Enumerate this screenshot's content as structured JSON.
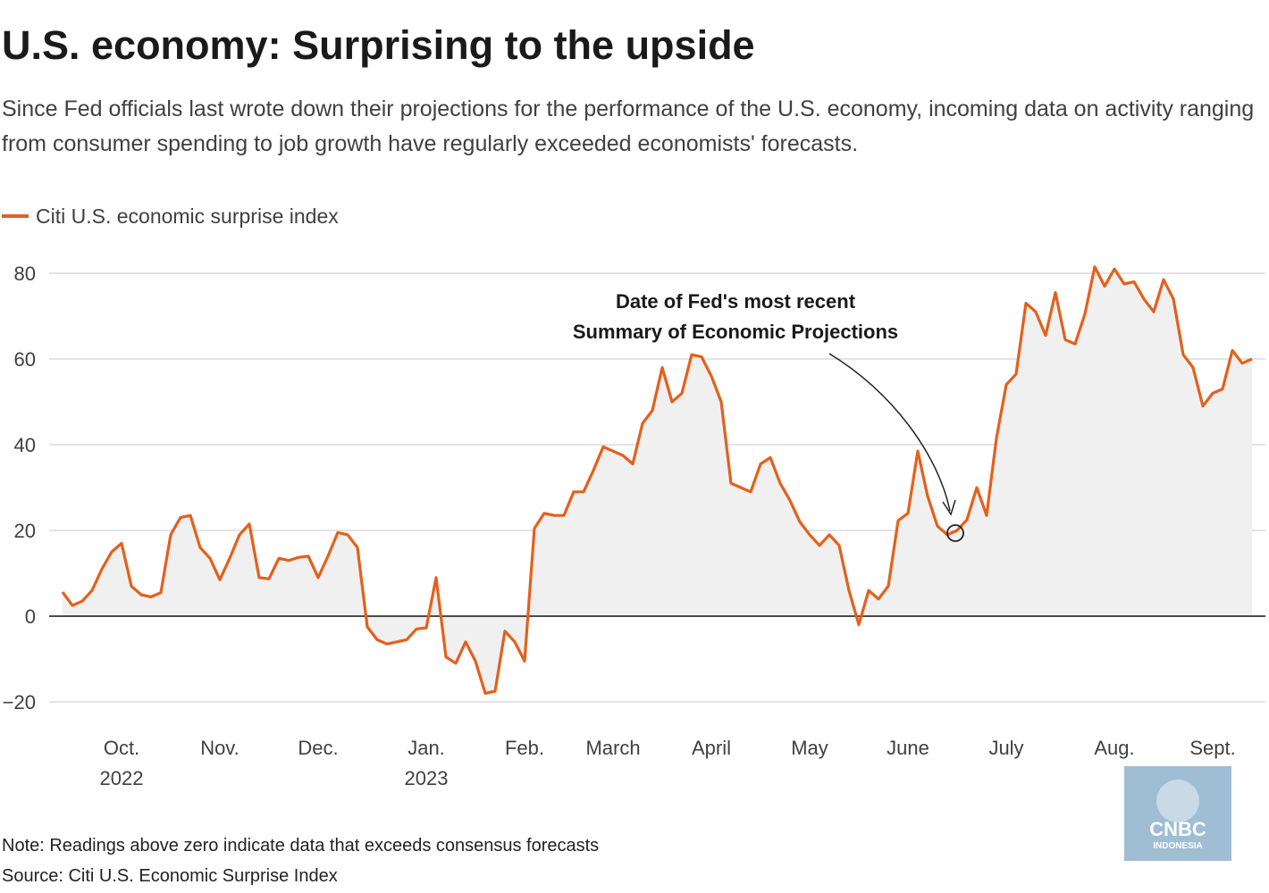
{
  "chart_data": {
    "type": "line",
    "title": "U.S. economy: Surprising to the upside",
    "subtitle": "Since Fed officials last wrote down their projections for the performance of the U.S. economy, incoming data on activity ranging from consumer spending to job growth have regularly exceeded economists' forecasts.",
    "annotation": [
      "Date of Fed's most recent",
      "Summary of Economic Projections"
    ],
    "note": "Note: Readings above zero indicate data that exceeds consensus forecasts",
    "source": "Source: Citi U.S. Economic Surprise Index",
    "logo": {
      "name": "CNBC",
      "sub": "INDONESIA"
    },
    "categories": [
      null,
      null,
      null,
      null,
      null,
      null,
      "Oct.\n2022",
      null,
      null,
      null,
      null,
      null,
      null,
      null,
      null,
      null,
      "Nov.",
      null,
      null,
      null,
      null,
      null,
      null,
      null,
      null,
      null,
      "Dec.",
      null,
      null,
      null,
      null,
      null,
      null,
      null,
      null,
      null,
      null,
      "Jan.\n2023",
      null,
      null,
      null,
      null,
      null,
      null,
      null,
      null,
      null,
      "Feb.",
      null,
      null,
      null,
      null,
      null,
      null,
      null,
      null,
      "March",
      null,
      null,
      null,
      null,
      null,
      null,
      null,
      null,
      null,
      "April",
      null,
      null,
      null,
      null,
      null,
      null,
      null,
      null,
      null,
      "May",
      null,
      null,
      null,
      null,
      null,
      null,
      null,
      null,
      null,
      "June",
      null,
      null,
      null,
      null,
      null,
      null,
      null,
      null,
      null,
      "July",
      null,
      null,
      null,
      null,
      null,
      null,
      null,
      null,
      null,
      null,
      "Aug.",
      null,
      null,
      null,
      null,
      null,
      null,
      null,
      null,
      null,
      "Sept.",
      null,
      null,
      null,
      null
    ],
    "series": [
      {
        "name": "Citi U.S. economic surprise index",
        "color": "#e4601b",
        "values": [
          5.6,
          2.5,
          3.5,
          6,
          11,
          15,
          17,
          7,
          5,
          4.5,
          5.5,
          19,
          23,
          23.5,
          16,
          13.5,
          8.5,
          13.5,
          19,
          21.5,
          9,
          8.7,
          13.5,
          13,
          13.7,
          14,
          9,
          14,
          19.5,
          19,
          16,
          -2.5,
          -5.5,
          -6.5,
          -6,
          -5.5,
          -3,
          -2.7,
          9,
          -9.5,
          -11,
          -6,
          -10.5,
          -18,
          -17.5,
          -3.5,
          -6,
          -10.5,
          20.5,
          24,
          23.5,
          23.5,
          29,
          29,
          34,
          39.5,
          38.5,
          37.5,
          35.5,
          45,
          48,
          58,
          50,
          52,
          61,
          60.5,
          56,
          50,
          31,
          30,
          29,
          35.5,
          37,
          31,
          27,
          22,
          19,
          16.5,
          19,
          16.5,
          6,
          -2,
          6,
          4,
          7,
          22.3,
          24,
          38.5,
          28,
          21,
          19,
          20,
          22.5,
          30,
          23.5,
          41.5,
          54,
          56.5,
          73,
          71,
          65.5,
          75.5,
          64.5,
          63.5,
          70.5,
          81.5,
          77,
          81,
          77.5,
          78,
          74,
          71,
          78.5,
          74,
          61,
          58,
          49,
          52,
          53,
          62,
          59,
          60
        ]
      }
    ],
    "area_color": "#f0f0f0",
    "ylim": [
      -28,
      85
    ],
    "yticks": [
      {
        "value": -20,
        "label": "−20"
      },
      0,
      20,
      40,
      60,
      80
    ],
    "grid": true
  }
}
